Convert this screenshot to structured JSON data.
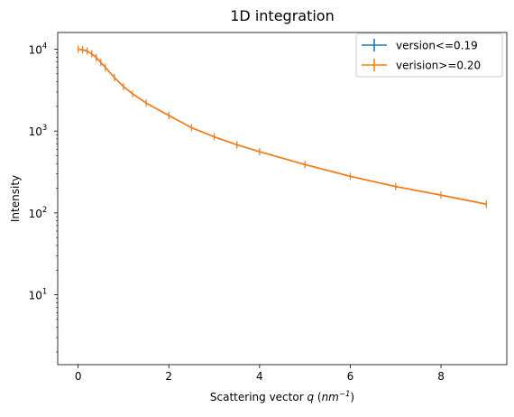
{
  "chart_data": {
    "type": "line",
    "title": "1D integration",
    "xlabel_prefix": "Scattering vector ",
    "xlabel_var": "q",
    "xlabel_unit_open": " (",
    "xlabel_unit_base": "nm",
    "xlabel_unit_exp": "−1",
    "xlabel_unit_close": ")",
    "ylabel": "Intensity",
    "xlim": [
      -0.45,
      9.45
    ],
    "ylim": [
      1.4,
      16000
    ],
    "yscale": "log",
    "x_ticks": [
      0,
      2,
      4,
      6,
      8
    ],
    "x_tick_labels": [
      "0",
      "2",
      "4",
      "6",
      "8"
    ],
    "y_ticks": [
      10,
      100,
      1000,
      10000
    ],
    "y_tick_base": "10",
    "y_tick_exps": [
      "1",
      "2",
      "3",
      "4"
    ],
    "legend_position": "top-right",
    "series": [
      {
        "name": "version<=0.19",
        "color": "#1f77b4",
        "x": [
          0.0,
          0.1,
          0.2,
          0.3,
          0.4,
          0.5,
          0.6,
          0.8,
          1.0,
          1.2,
          1.5,
          2.0,
          2.5,
          3.0,
          3.5,
          4.0,
          5.0,
          6.0,
          7.0,
          8.0,
          9.0
        ],
        "y": [
          10000,
          9850,
          9500,
          8800,
          7900,
          6900,
          6000,
          4500,
          3500,
          2850,
          2200,
          1550,
          1100,
          850,
          680,
          560,
          390,
          280,
          210,
          165,
          128
        ]
      },
      {
        "name": "verision>=0.20",
        "color": "#ff7f0e",
        "x": [
          0.0,
          0.1,
          0.2,
          0.3,
          0.4,
          0.5,
          0.6,
          0.8,
          1.0,
          1.2,
          1.5,
          2.0,
          2.5,
          3.0,
          3.5,
          4.0,
          5.0,
          6.0,
          7.0,
          8.0,
          9.0
        ],
        "y": [
          10000,
          9850,
          9500,
          8800,
          7900,
          6900,
          6000,
          4500,
          3500,
          2850,
          2200,
          1550,
          1100,
          850,
          680,
          560,
          390,
          280,
          210,
          165,
          128
        ]
      }
    ]
  }
}
